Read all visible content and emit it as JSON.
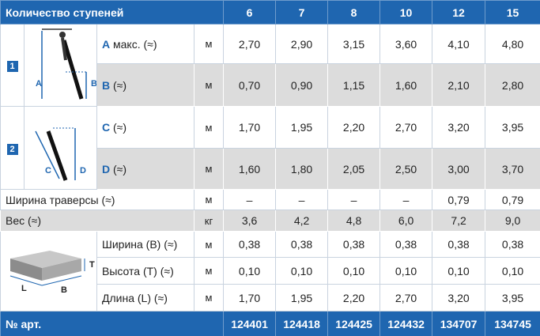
{
  "header": {
    "label": "Количество ступеней",
    "steps": [
      "6",
      "7",
      "8",
      "10",
      "12",
      "15"
    ]
  },
  "sections": [
    {
      "badge": "1",
      "diagram_labels": [
        "A",
        "B"
      ],
      "rows": [
        {
          "letter": "A",
          "label": "макс. (≈)",
          "unit": "м",
          "values": [
            "2,70",
            "2,90",
            "3,15",
            "3,60",
            "4,10",
            "4,80"
          ]
        },
        {
          "letter": "B",
          "label": "(≈)",
          "unit": "м",
          "values": [
            "0,70",
            "0,90",
            "1,15",
            "1,60",
            "2,10",
            "2,80"
          ]
        }
      ]
    },
    {
      "badge": "2",
      "diagram_labels": [
        "C",
        "D"
      ],
      "rows": [
        {
          "letter": "C",
          "label": "(≈)",
          "unit": "м",
          "values": [
            "1,70",
            "1,95",
            "2,20",
            "2,70",
            "3,20",
            "3,95"
          ]
        },
        {
          "letter": "D",
          "label": "(≈)",
          "unit": "м",
          "values": [
            "1,60",
            "1,80",
            "2,05",
            "2,50",
            "3,00",
            "3,70"
          ]
        }
      ]
    }
  ],
  "general_rows": [
    {
      "label": "Ширина траверсы (≈)",
      "unit": "м",
      "values": [
        "–",
        "–",
        "–",
        "–",
        "0,79",
        "0,79"
      ]
    },
    {
      "label": "Вес (≈)",
      "unit": "кг",
      "values": [
        "3,6",
        "4,2",
        "4,8",
        "6,0",
        "7,2",
        "9,0"
      ]
    }
  ],
  "board": {
    "diagram_labels": [
      "T",
      "L",
      "B"
    ],
    "rows": [
      {
        "label": "Ширина (B) (≈)",
        "unit": "м",
        "values": [
          "0,38",
          "0,38",
          "0,38",
          "0,38",
          "0,38",
          "0,38"
        ]
      },
      {
        "label": "Высота (T) (≈)",
        "unit": "м",
        "values": [
          "0,10",
          "0,10",
          "0,10",
          "0,10",
          "0,10",
          "0,10"
        ]
      },
      {
        "label": "Длина (L) (≈)",
        "unit": "м",
        "values": [
          "1,70",
          "1,95",
          "2,20",
          "2,70",
          "3,20",
          "3,95"
        ]
      }
    ]
  },
  "footer": {
    "label": "№ арт.",
    "values": [
      "124401",
      "124418",
      "124425",
      "124432",
      "134707",
      "134745"
    ]
  }
}
